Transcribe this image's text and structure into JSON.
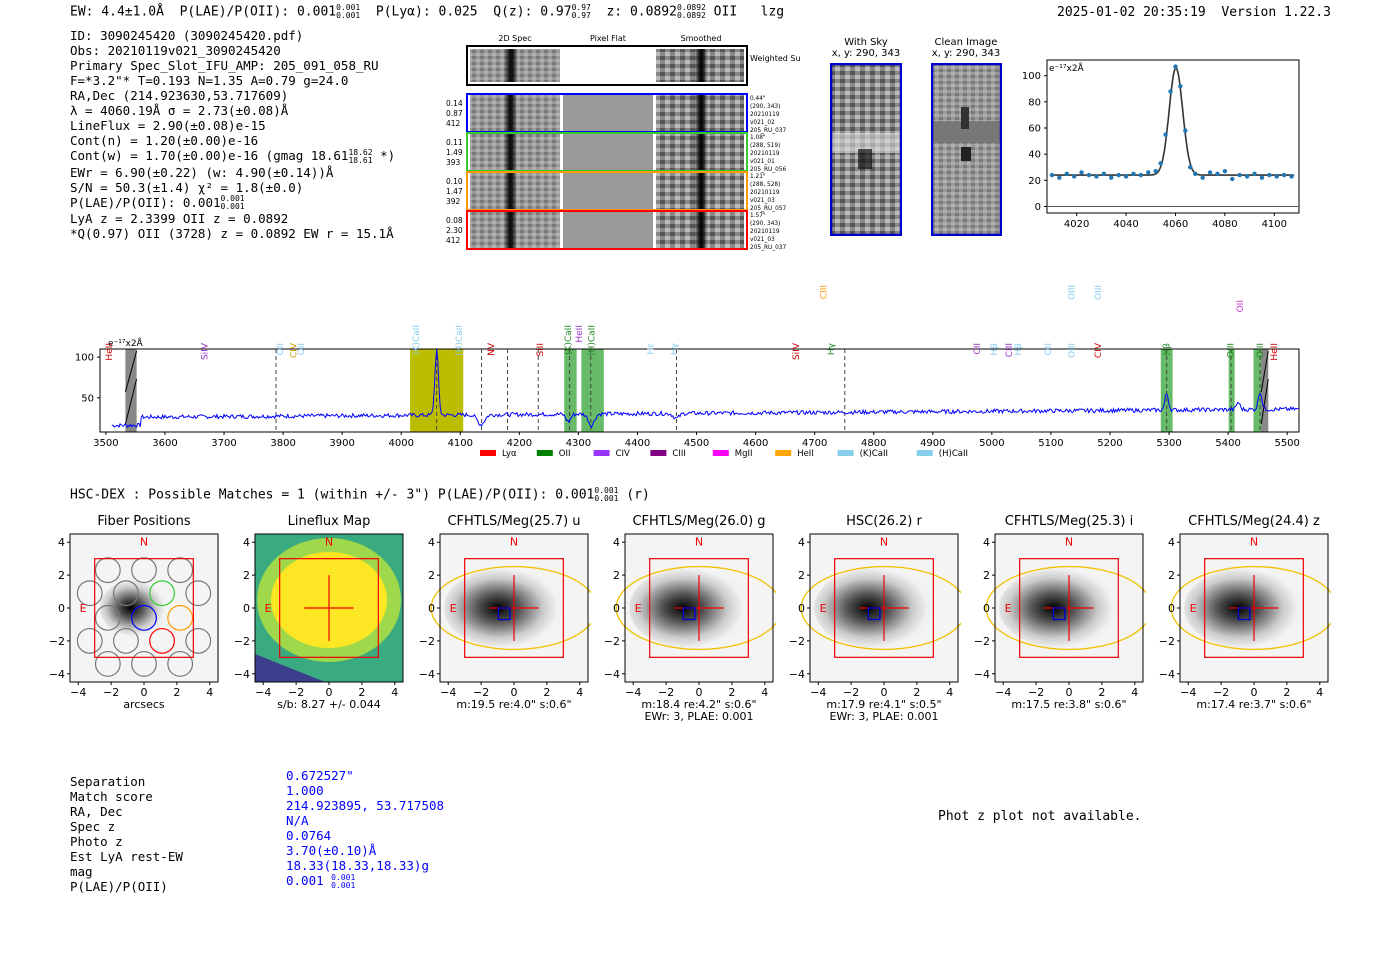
{
  "header": {
    "ew": "EW: 4.4±1.0Å",
    "plae_label": "P(LAE)/P(OII): 0.001",
    "plae_up": "0.001",
    "plae_lo": "0.001",
    "plya": "P(Lyα): 0.025",
    "qz_label": "Q(z): 0.97",
    "qz_up": "0.97",
    "qz_lo": "0.97",
    "z_label": "z: 0.0892",
    "z_up": "0.0892",
    "z_lo": "0.0892",
    "line": "OII",
    "flag": "lzg",
    "timestamp": "2025-01-02 20:35:19",
    "version": "Version 1.22.3"
  },
  "info": {
    "line1": "ID: 3090245420 (3090245420.pdf)",
    "line2": "Obs: 20210119v021_3090245420",
    "line3": "Primary Spec_Slot_IFU_AMP: 205_091_058_RU",
    "line4": "F=*3.2\"*  T=0.193  N=1.35  A=0.79  g=24.0",
    "line5": "RA,Dec (214.923630,53.717609)",
    "line6": "λ = 4060.19Å  σ = 2.73(±0.08)Å",
    "line7": "LineFlux = 2.90(±0.08)e-15",
    "line8": "Cont(n) = 1.20(±0.00)e-16",
    "line9": "Cont(w) = 1.70(±0.00)e-16 (gmag 18.61",
    "line9_up": "18.62",
    "line9_lo": "18.61",
    "line9_end": "*)",
    "line10": "EWr = 6.90(±0.22) (w: 4.90(±0.14))Å",
    "line11": "S/N = 50.3(±1.4)  χ² = 1.8(±0.0)",
    "line12": "P(LAE)/P(OII): 0.001",
    "line12_up": "0.001",
    "line12_lo": "0.001",
    "line13": "LyA z = 2.3399  OII z = 0.0892",
    "line14": "*Q(0.97) OII (3728) z = 0.0892  EW r = 15.1Å"
  },
  "spec2d": {
    "col_headers": [
      "2D Spec",
      "Pixel Flat",
      "Smoothed"
    ],
    "weighted_sum": "Weighted Sum",
    "rows": [
      {
        "left": [
          "0.14",
          "0.87",
          "412"
        ],
        "right": [
          "0.44\"",
          "(290, 343)",
          "20210119",
          "v021_02",
          "205_RU_037"
        ],
        "color": "#0000ff"
      },
      {
        "left": [
          "0.11",
          "1.49",
          "393"
        ],
        "right": [
          "1.08\"",
          "(288, 519)",
          "20210119",
          "v021_01",
          "205_RU_056"
        ],
        "color": "#33cc33"
      },
      {
        "left": [
          "0.10",
          "1.47",
          "392"
        ],
        "right": [
          "1.21\"",
          "(288, 528)",
          "20210119",
          "v021_03",
          "205_RU_057"
        ],
        "color": "#ff9900"
      },
      {
        "left": [
          "0.08",
          "2.30",
          "412"
        ],
        "right": [
          "1.57\"",
          "(290, 343)",
          "20210119",
          "v021_03",
          "205_RU_037"
        ],
        "color": "#ff0000"
      }
    ]
  },
  "cutouts": {
    "sky_title": "With Sky",
    "sky_coords": "x, y: 290, 343",
    "clean_title": "Clean Image",
    "clean_coords": "x, y: 290, 343"
  },
  "colors": {
    "spectrum_line": "#0000ff",
    "fit_line": "#333333",
    "fit_points": "#1f77b4",
    "olive_band": "#bdbd00",
    "green_band": "#4cae4c"
  },
  "chart_data": [
    {
      "type": "line",
      "title": "",
      "ylabel_unit": "e⁻¹⁷x2Å",
      "xlim": [
        4008,
        4110
      ],
      "ylim": [
        -5,
        112
      ],
      "xticks": [
        4020,
        4040,
        4060,
        4080,
        4100
      ],
      "yticks": [
        0,
        20,
        40,
        60,
        80,
        100
      ],
      "fit": {
        "center": 4060.19,
        "sigma": 2.73,
        "continuum": 24,
        "amplitude": 82
      },
      "points_x": [
        4010,
        4013,
        4016,
        4019,
        4022,
        4025,
        4028,
        4031,
        4034,
        4037,
        4040,
        4043,
        4046,
        4049,
        4052,
        4054,
        4056,
        4058,
        4060,
        4062,
        4064,
        4066,
        4068,
        4071,
        4074,
        4077,
        4080,
        4083,
        4086,
        4089,
        4092,
        4095,
        4098,
        4101,
        4104,
        4107
      ],
      "points_y": [
        24,
        22,
        25,
        23,
        26,
        24,
        23,
        25,
        22,
        24,
        23,
        25,
        24,
        26,
        27,
        33,
        55,
        88,
        107,
        92,
        58,
        30,
        25,
        22,
        26,
        25,
        27,
        21,
        24,
        23,
        25,
        22,
        24,
        23,
        24,
        23
      ]
    },
    {
      "type": "line",
      "ylabel_unit": "e⁻¹⁷x2Å",
      "xlim": [
        3490,
        5520
      ],
      "ylim": [
        8,
        110
      ],
      "xticks": [
        3500,
        3600,
        3700,
        3800,
        3900,
        4000,
        4100,
        4200,
        4300,
        4400,
        4500,
        4600,
        4700,
        4800,
        4900,
        5000,
        5100,
        5200,
        5300,
        5400,
        5500
      ],
      "yticks": [
        50,
        100
      ],
      "emission_peaks": [
        {
          "x": 4060,
          "height": 80,
          "sigma": 3
        },
        {
          "x": 5296,
          "height": 20,
          "sigma": 3
        },
        {
          "x": 5417,
          "height": 9,
          "sigma": 3
        },
        {
          "x": 5454,
          "height": 22,
          "sigma": 3
        }
      ],
      "absorptions": [
        {
          "x": 4135,
          "depth": 12,
          "sigma": 6
        },
        {
          "x": 4283,
          "depth": 9,
          "sigma": 4
        },
        {
          "x": 4322,
          "depth": 14,
          "sigma": 5
        },
        {
          "x": 4466,
          "depth": 6,
          "sigma": 5
        }
      ],
      "dashed_lines": [
        3788,
        4060,
        4136,
        4180,
        4232,
        4285,
        4321,
        4466,
        4751,
        5296,
        5405,
        5454
      ],
      "olive_band": [
        4015,
        4105
      ],
      "green_bands": [
        [
          4276,
          4297
        ],
        [
          4305,
          4343
        ],
        [
          5286,
          5306
        ],
        [
          5401,
          5411
        ],
        [
          5443,
          5461
        ]
      ],
      "gray_bands": [
        [
          3533,
          3552
        ],
        [
          5456,
          5468
        ]
      ],
      "line_labels": [
        {
          "x": 3505,
          "label": "HeII",
          "color": "#cc0000",
          "row": 3
        },
        {
          "x": 3667,
          "label": "SiIV",
          "color": "#9933cc",
          "row": 3
        },
        {
          "x": 3795,
          "label": "OII",
          "color": "#88ccee",
          "row": 3
        },
        {
          "x": 3818,
          "label": "CIV",
          "color": "#cc9900",
          "row": 3
        },
        {
          "x": 3830,
          "label": "OII",
          "color": "#88ccee",
          "row": 3
        },
        {
          "x": 4025,
          "label": "(K)CaII",
          "color": "#88ccee",
          "row": 2
        },
        {
          "x": 4098,
          "label": "(H)CaII",
          "color": "#88ccee",
          "row": 2
        },
        {
          "x": 4152,
          "label": "NV",
          "color": "#cc0000",
          "row": 3
        },
        {
          "x": 4235,
          "label": "SiII",
          "color": "#cc0000",
          "row": 3
        },
        {
          "x": 4282,
          "label": "(K)CaII",
          "color": "#228822",
          "row": 2
        },
        {
          "x": 4301,
          "label": "HeII",
          "color": "#9933cc",
          "row": 2
        },
        {
          "x": 4322,
          "label": "(H)CaII",
          "color": "#228822",
          "row": 2
        },
        {
          "x": 4422,
          "label": "Hε",
          "color": "#88ccee",
          "row": 3
        },
        {
          "x": 4462,
          "label": "Hγ",
          "color": "#88ccee",
          "row": 3
        },
        {
          "x": 4668,
          "label": "SiIV",
          "color": "#cc0000",
          "row": 3
        },
        {
          "x": 4715,
          "label": "CIII",
          "color": "#ff9900",
          "row": 1
        },
        {
          "x": 4728,
          "label": "Hγ",
          "color": "#228822",
          "row": 3
        },
        {
          "x": 4975,
          "label": "CII",
          "color": "#9933cc",
          "row": 3
        },
        {
          "x": 5004,
          "label": "Hβ",
          "color": "#88ccee",
          "row": 3
        },
        {
          "x": 5029,
          "label": "CIII",
          "color": "#9933cc",
          "row": 3
        },
        {
          "x": 5044,
          "label": "Hβ",
          "color": "#88ccee",
          "row": 3
        },
        {
          "x": 5095,
          "label": "OII",
          "color": "#88ccee",
          "row": 3
        },
        {
          "x": 5135,
          "label": "OIII",
          "color": "#88ccee",
          "row": 3
        },
        {
          "x": 5135,
          "label": "OIII",
          "color": "#88ccee",
          "row": 1
        },
        {
          "x": 5180,
          "label": "OIII",
          "color": "#88ccee",
          "row": 1
        },
        {
          "x": 5180,
          "label": "CIV",
          "color": "#cc0000",
          "row": 3
        },
        {
          "x": 5296,
          "label": "Hβ",
          "color": "#228822",
          "row": 3
        },
        {
          "x": 5404,
          "label": "OIII",
          "color": "#228822",
          "row": 3
        },
        {
          "x": 5420,
          "label": "OII",
          "color": "#cc33cc",
          "row": 0
        },
        {
          "x": 5454,
          "label": "OIII",
          "color": "#228822",
          "row": 3
        },
        {
          "x": 5478,
          "label": "HeII",
          "color": "#cc0000",
          "row": 3
        }
      ],
      "legend": [
        {
          "label": "Lyα",
          "color": "#ff0000"
        },
        {
          "label": "OII",
          "color": "#008000"
        },
        {
          "label": "CIV",
          "color": "#9933ff"
        },
        {
          "label": "CIII",
          "color": "#800080"
        },
        {
          "label": "MgII",
          "color": "#ff00ff"
        },
        {
          "label": "HeII",
          "color": "#ffa500"
        },
        {
          "label": "(K)CaII",
          "color": "#87ceeb"
        },
        {
          "label": "(H)CaII",
          "color": "#87ceeb"
        }
      ]
    }
  ],
  "match": {
    "title": "HSC-DEX : Possible Matches = 1 (within +/- 3\")  P(LAE)/P(OII): 0.001",
    "title_up": "0.001",
    "title_lo": "0.001",
    "title_band": "(r)"
  },
  "panels": [
    {
      "title": "Fiber Positions",
      "xlabel": "arcsecs",
      "sub": ""
    },
    {
      "title": "Lineflux Map",
      "xlabel": "s/b: 8.27 +/- 0.044",
      "sub": ""
    },
    {
      "title": "CFHTLS/Meg(25.7) u",
      "xlabel": "m:19.5  re:4.0\"  s:0.6\"",
      "sub": ""
    },
    {
      "title": "CFHTLS/Meg(26.0) g",
      "xlabel": "m:18.4  re:4.2\"  s:0.6\"",
      "sub": "EWr: 3, PLAE: 0.001"
    },
    {
      "title": "HSC(26.2) r",
      "xlabel": "m:17.9  re:4.1\"  s:0.5\"",
      "sub": "EWr: 3, PLAE: 0.001"
    },
    {
      "title": "CFHTLS/Meg(25.3) i",
      "xlabel": "m:17.5  re:3.8\"  s:0.6\"",
      "sub": ""
    },
    {
      "title": "CFHTLS/Meg(24.4) z",
      "xlabel": "m:17.4  re:3.7\"  s:0.6\"",
      "sub": ""
    }
  ],
  "panel_axis": {
    "ticks": [
      "−4",
      "−2",
      "0",
      "2",
      "4"
    ],
    "n_label": "N",
    "e_label": "E"
  },
  "summary": {
    "labels": [
      "Separation",
      "Match score",
      "RA, Dec",
      "Spec z",
      "Photo z",
      "Est LyA rest-EW",
      "mag",
      "P(LAE)/P(OII)"
    ],
    "values": [
      "0.672527\"",
      "1.000",
      "214.923895, 53.717508",
      "N/A",
      "0.0764",
      "3.70(±0.10)Å",
      "18.33(18.33,18.33)g",
      "0.001"
    ],
    "plae_up": "0.001",
    "plae_lo": "0.001"
  },
  "photz_note": "Phot z plot not available."
}
